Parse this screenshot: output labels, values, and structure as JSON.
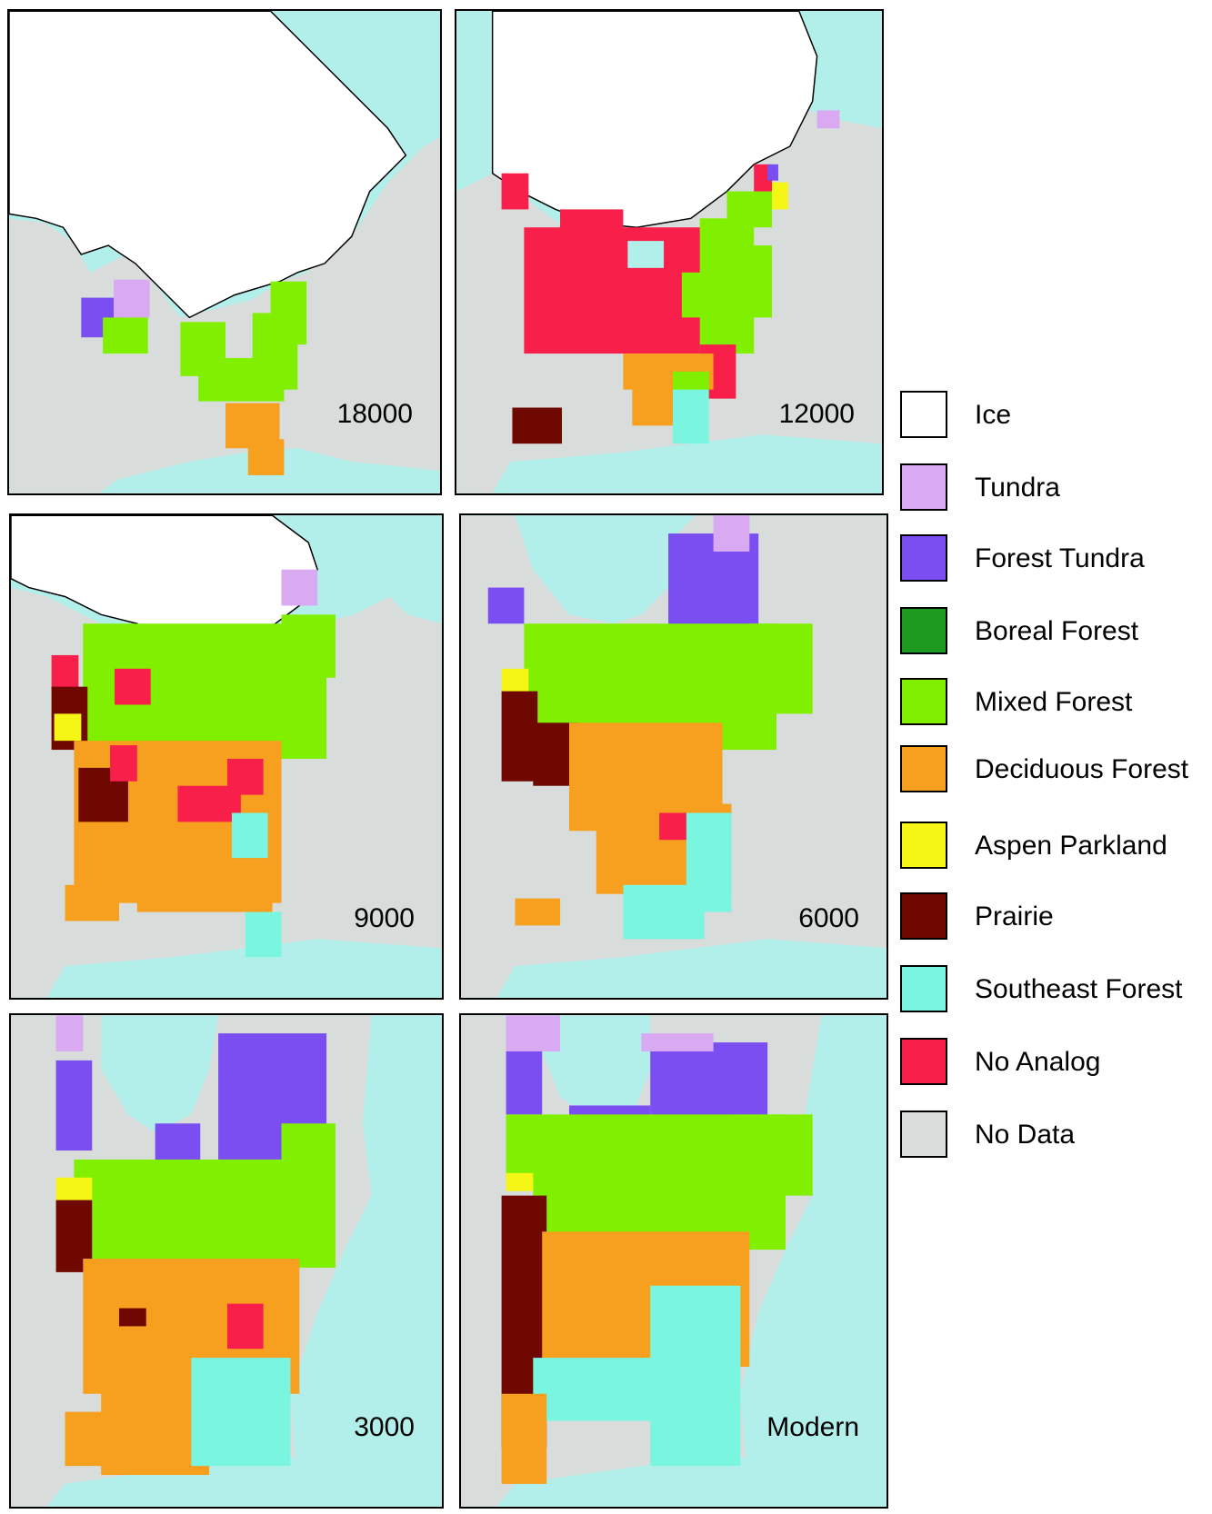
{
  "panels": [
    {
      "id": "p18000",
      "label": "18000"
    },
    {
      "id": "p12000",
      "label": "12000"
    },
    {
      "id": "p9000",
      "label": "9000"
    },
    {
      "id": "p6000",
      "label": "6000"
    },
    {
      "id": "p3000",
      "label": "3000"
    },
    {
      "id": "pmodern",
      "label": "Modern"
    }
  ],
  "legend": [
    {
      "label": "Ice",
      "color": "#ffffff"
    },
    {
      "label": "Tundra",
      "color": "#d9aaf2"
    },
    {
      "label": "Forest Tundra",
      "color": "#7a4ef0"
    },
    {
      "label": "Boreal Forest",
      "color": "#1e9a1e"
    },
    {
      "label": "Mixed Forest",
      "color": "#80f000"
    },
    {
      "label": "Deciduous Forest",
      "color": "#f7a020"
    },
    {
      "label": "Aspen Parkland",
      "color": "#f6f616"
    },
    {
      "label": "Prairie",
      "color": "#6e0800"
    },
    {
      "label": "Southeast Forest",
      "color": "#7af5e0"
    },
    {
      "label": "No Analog",
      "color": "#f8204a"
    },
    {
      "label": "No Data",
      "color": "#d8dcda"
    }
  ],
  "colors": {
    "water": "#b3efea",
    "land": "#d8dcda",
    "ice": "#ffffff"
  }
}
